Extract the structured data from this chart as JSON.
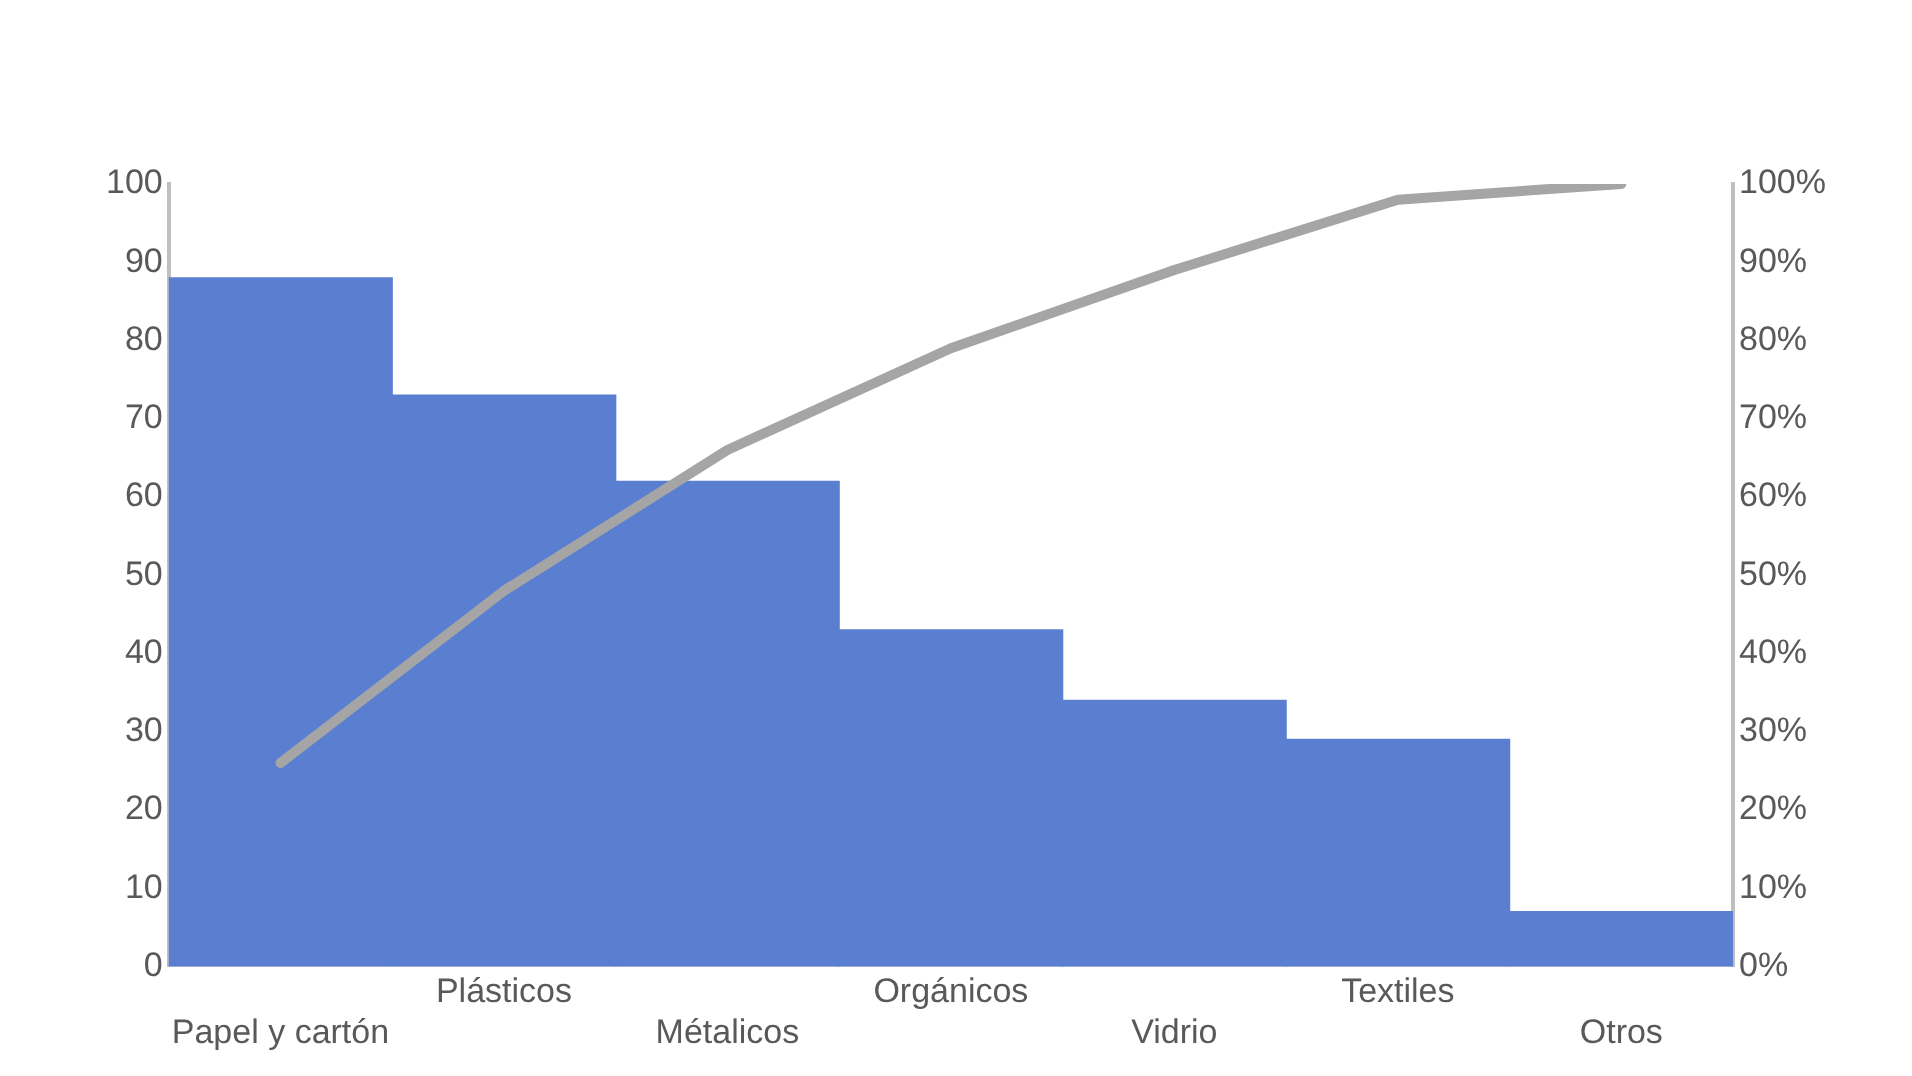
{
  "chart_data": {
    "type": "bar",
    "categories": [
      "Papel y cartón",
      "Plásticos",
      "Métalicos",
      "Orgánicos",
      "Vidrio",
      "Textiles",
      "Otros"
    ],
    "series": [
      {
        "color": "#5b7fd0",
        "values": [
          88,
          73,
          62,
          43,
          34,
          29,
          7
        ]
      },
      {
        "type": "line",
        "axis": "y2",
        "color": "#a5a5a5",
        "values": [
          26,
          48,
          66,
          79,
          89,
          98,
          100
        ]
      }
    ],
    "ylim": [
      0,
      100
    ],
    "yticks": [
      0,
      10,
      20,
      30,
      40,
      50,
      60,
      70,
      80,
      90,
      100
    ],
    "y2lim": [
      0,
      100
    ],
    "y2ticks": [
      {
        "value": 0,
        "label": "0%"
      },
      {
        "value": 10,
        "label": "10%"
      },
      {
        "value": 20,
        "label": "20%"
      },
      {
        "value": 30,
        "label": "30%"
      },
      {
        "value": 40,
        "label": "40%"
      },
      {
        "value": 50,
        "label": "50%"
      },
      {
        "value": 60,
        "label": "60%"
      },
      {
        "value": 70,
        "label": "70%"
      },
      {
        "value": 80,
        "label": "80%"
      },
      {
        "value": 90,
        "label": "90%"
      },
      {
        "value": 100,
        "label": "100%"
      }
    ],
    "grid": false,
    "legend": false,
    "marker": "none"
  }
}
